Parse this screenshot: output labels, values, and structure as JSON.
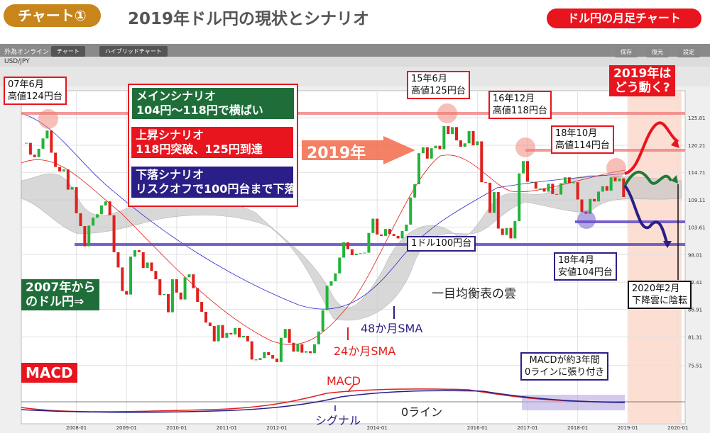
{
  "header": {
    "badge": "チャート①",
    "title": "2019年ドル円の現状とシナリオ",
    "tag": "ドル円の月足チャート"
  },
  "app": {
    "brand": "外為オンライン",
    "tabs": [
      "チャート",
      "ハイブリッドチャート"
    ],
    "symbol": "USD/JPY",
    "buttons": [
      "保存",
      "復元",
      "設定"
    ]
  },
  "annotations": {
    "peak07": [
      "07年6月",
      "高値124円台"
    ],
    "peak15": [
      "15年6月",
      "高値125円台"
    ],
    "peak16": [
      "16年12月",
      "高値118円台"
    ],
    "peak18": [
      "18年10月",
      "高値114円台"
    ],
    "main": [
      "メインシナリオ",
      "104円～118円で横ばい"
    ],
    "up": [
      "上昇シナリオ",
      "118円突破、125円到達"
    ],
    "down": [
      "下落シナリオ",
      "リスクオフで100円台まで下落"
    ],
    "year": "2019年",
    "question": [
      "2019年は",
      "どう動く?"
    ],
    "level100": "1ドル100円台",
    "low18": [
      "18年4月",
      "安値104円台"
    ],
    "cloudTurn": [
      "2020年2月",
      "下降雲に陰転"
    ],
    "since07": [
      "2007年から",
      "のドル円⇒"
    ],
    "cloud": "一目均衡表の雲",
    "sma48": "48か月SMA",
    "sma24": "24か月SMA",
    "macdBadge": "MACD",
    "macd": "MACD",
    "signal": "シグナル",
    "zero": "0ライン",
    "macdNote": [
      "MACDが約3年間",
      "0ラインに張り付き"
    ]
  },
  "chart_data": {
    "type": "candlestick",
    "x": [
      "2007-01",
      "2007-02",
      "2007-03",
      "2007-04",
      "2007-05",
      "2007-06",
      "2007-07",
      "2007-08",
      "2007-09",
      "2007-10",
      "2007-11",
      "2007-12",
      "2008-01",
      "2008-02",
      "2008-03",
      "2008-04",
      "2008-05",
      "2008-06",
      "2008-07",
      "2008-08",
      "2008-09",
      "2008-10",
      "2008-11",
      "2008-12",
      "2009-01",
      "2009-02",
      "2009-03",
      "2009-04",
      "2009-05",
      "2009-06",
      "2009-07",
      "2009-08",
      "2009-09",
      "2009-10",
      "2009-11",
      "2009-12",
      "2010-01",
      "2010-02",
      "2010-03",
      "2010-04",
      "2010-05",
      "2010-06",
      "2010-07",
      "2010-08",
      "2010-09",
      "2010-10",
      "2010-11",
      "2010-12",
      "2011-01",
      "2011-02",
      "2011-03",
      "2011-04",
      "2011-05",
      "2011-06",
      "2011-07",
      "2011-08",
      "2011-09",
      "2011-10",
      "2011-11",
      "2011-12",
      "2012-01",
      "2012-02",
      "2012-03",
      "2012-04",
      "2012-05",
      "2012-06",
      "2012-07",
      "2012-08",
      "2012-09",
      "2012-10",
      "2012-11",
      "2012-12",
      "2013-01",
      "2013-02",
      "2013-03",
      "2013-04",
      "2013-05",
      "2013-06",
      "2013-07",
      "2013-08",
      "2013-09",
      "2013-10",
      "2013-11",
      "2013-12",
      "2014-01",
      "2014-02",
      "2014-03",
      "2014-04",
      "2014-05",
      "2014-06",
      "2014-07",
      "2014-08",
      "2014-09",
      "2014-10",
      "2014-11",
      "2014-12",
      "2015-01",
      "2015-02",
      "2015-03",
      "2015-04",
      "2015-05",
      "2015-06",
      "2015-07",
      "2015-08",
      "2015-09",
      "2015-10",
      "2015-11",
      "2015-12",
      "2016-01",
      "2016-02",
      "2016-03",
      "2016-04",
      "2016-05",
      "2016-06",
      "2016-07",
      "2016-08",
      "2016-09",
      "2016-10",
      "2016-11",
      "2016-12",
      "2017-01",
      "2017-02",
      "2017-03",
      "2017-04",
      "2017-05",
      "2017-06",
      "2017-07",
      "2017-08",
      "2017-09",
      "2017-10",
      "2017-11",
      "2017-12",
      "2018-01",
      "2018-02",
      "2018-03",
      "2018-04",
      "2018-05",
      "2018-06",
      "2018-07",
      "2018-08",
      "2018-09",
      "2018-10",
      "2018-11",
      "2018-12"
    ],
    "values": [
      120.7,
      118.3,
      117.8,
      119.5,
      121.6,
      123.2,
      118.7,
      115.8,
      114.9,
      115.3,
      111.2,
      111.7,
      106.4,
      103.8,
      99.7,
      103.9,
      105.5,
      106.2,
      108.0,
      108.8,
      106.0,
      98.5,
      95.4,
      90.6,
      89.9,
      97.6,
      98.9,
      98.5,
      95.3,
      96.4,
      94.7,
      93.0,
      89.8,
      90.0,
      86.3,
      93.0,
      90.3,
      88.9,
      93.4,
      94.0,
      91.2,
      88.4,
      86.4,
      84.2,
      83.5,
      80.4,
      83.7,
      81.1,
      82.1,
      81.8,
      83.1,
      81.2,
      81.5,
      80.4,
      76.7,
      76.6,
      77.0,
      78.2,
      77.6,
      76.9,
      76.2,
      81.1,
      82.9,
      80.1,
      78.3,
      79.8,
      78.1,
      78.4,
      78.0,
      79.8,
      82.4,
      86.7,
      91.7,
      92.6,
      94.2,
      97.4,
      100.5,
      99.1,
      97.9,
      98.2,
      98.3,
      98.4,
      102.4,
      105.3,
      102.1,
      101.8,
      103.2,
      102.2,
      101.8,
      101.3,
      102.8,
      104.1,
      109.6,
      112.3,
      118.6,
      119.8,
      117.5,
      119.6,
      120.1,
      119.4,
      124.1,
      122.5,
      123.9,
      121.2,
      119.9,
      120.6,
      123.1,
      120.2,
      121.0,
      112.7,
      112.6,
      106.5,
      110.7,
      103.3,
      102.0,
      103.4,
      101.3,
      104.8,
      114.5,
      117.0,
      112.8,
      112.8,
      111.4,
      111.5,
      110.8,
      112.4,
      110.3,
      110.2,
      112.5,
      113.7,
      112.5,
      112.7,
      109.2,
      106.7,
      106.3,
      109.3,
      108.8,
      110.8,
      111.9,
      111.0,
      113.7,
      112.9,
      113.5,
      109.7
    ],
    "up_color": "#22b33a",
    "down_color": "#e0201c",
    "ylim": [
      72,
      131
    ],
    "yticks": [
      125.81,
      120.21,
      114.71,
      109.11,
      103.61,
      98.01,
      92.41,
      86.91,
      81.31,
      75.51
    ],
    "xticks": [
      "2008-01",
      "2009-01",
      "2010-01",
      "2011-01",
      "2012-01",
      "2014-01",
      "2016-01",
      "2017-01",
      "2018-01",
      "2019-01",
      "2020-01"
    ],
    "grid": true
  }
}
